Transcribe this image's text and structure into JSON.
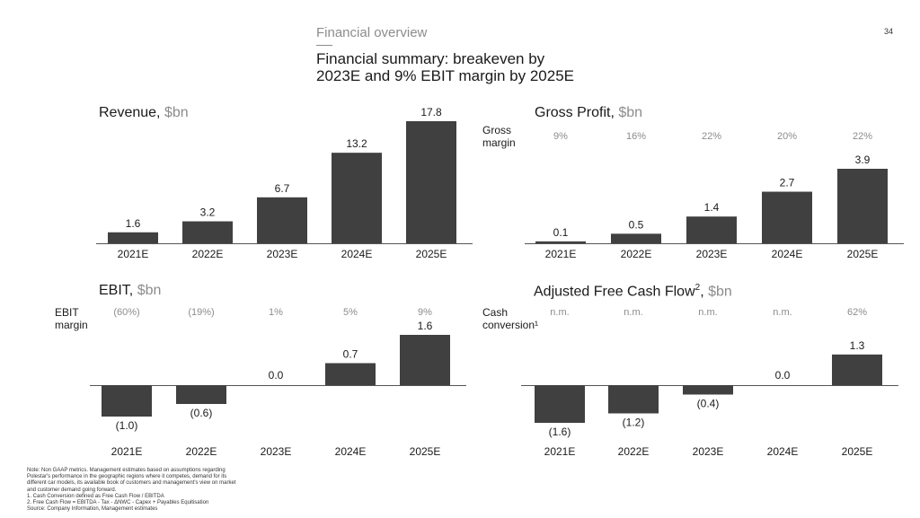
{
  "header": {
    "section_title": "Financial overview",
    "title_line1": "Financial summary: breakeven by",
    "title_line2": "2023E and 9% EBIT margin by 2025E",
    "page_number": "34"
  },
  "colors": {
    "bar": "#404040",
    "axis": "#555555",
    "muted": "#8c8c8c"
  },
  "chart_data": [
    {
      "type": "bar",
      "title": "Revenue, ",
      "unit": "$bn",
      "categories": [
        "2021E",
        "2022E",
        "2023E",
        "2024E",
        "2025E"
      ],
      "values": [
        1.6,
        3.2,
        6.7,
        13.2,
        17.8
      ],
      "labels": [
        "1.6",
        "3.2",
        "6.7",
        "13.2",
        "17.8"
      ],
      "ylim": [
        0,
        17.8
      ]
    },
    {
      "type": "bar",
      "title": "Gross Profit, ",
      "unit": "$bn",
      "categories": [
        "2021E",
        "2022E",
        "2023E",
        "2024E",
        "2025E"
      ],
      "values": [
        0.1,
        0.5,
        1.4,
        2.7,
        3.9
      ],
      "labels": [
        "0.1",
        "0.5",
        "1.4",
        "2.7",
        "3.9"
      ],
      "ratio_label": [
        "Gross",
        "margin"
      ],
      "ratios": [
        "9%",
        "16%",
        "22%",
        "20%",
        "22%"
      ],
      "ylim": [
        0,
        3.9
      ]
    },
    {
      "type": "bar",
      "title": "EBIT, ",
      "unit": "$bn",
      "categories": [
        "2021E",
        "2022E",
        "2023E",
        "2024E",
        "2025E"
      ],
      "values": [
        -1.0,
        -0.6,
        0.0,
        0.7,
        1.6
      ],
      "labels": [
        "(1.0)",
        "(0.6)",
        "0.0",
        "0.7",
        "1.6"
      ],
      "ratio_label": [
        "EBIT",
        "margin"
      ],
      "ratios": [
        "(60%)",
        "(19%)",
        "1%",
        "5%",
        "9%"
      ],
      "ylim": [
        -1.0,
        1.6
      ]
    },
    {
      "type": "bar",
      "title": "Adjusted Free Cash Flow",
      "title_sup": "2",
      "title_suffix": ", ",
      "unit": "$bn",
      "categories": [
        "2021E",
        "2022E",
        "2023E",
        "2024E",
        "2025E"
      ],
      "values": [
        -1.6,
        -1.2,
        -0.4,
        0.0,
        1.3
      ],
      "labels": [
        "(1.6)",
        "(1.2)",
        "(0.4)",
        "0.0",
        "1.3"
      ],
      "ratio_label": [
        "Cash",
        "conversion¹"
      ],
      "ratios": [
        "n.m.",
        "n.m.",
        "n.m.",
        "n.m.",
        "62%"
      ],
      "ylim": [
        -1.6,
        1.3
      ]
    }
  ],
  "footnotes": [
    "Note: Non GAAP metrics. Management estimates based on assumptions regarding Polestar's performance in the geographic regions where it competes, demand for its different car models, its available book of customers and management's view on market and customer demand going forward.",
    "1.     Cash Conversion defined as Free Cash Flow / EBITDA",
    "2.     Free Cash Flow = EBITDA - Tax - ΔNWC - Capex + Payables Equitisation",
    "Source: Company Information, Management estimates"
  ]
}
